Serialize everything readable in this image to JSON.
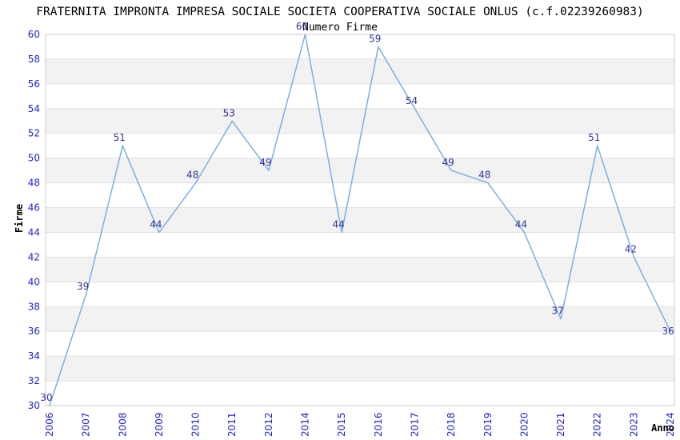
{
  "chart_data": {
    "type": "line",
    "title": "FRATERNITA IMPRONTA IMPRESA SOCIALE SOCIETA COOPERATIVA SOCIALE ONLUS (c.f.02239260983)",
    "subtitle": "Numero Firme",
    "xlabel": "Anno",
    "ylabel": "Firme",
    "categories": [
      "2006",
      "2007",
      "2008",
      "2009",
      "2010",
      "2011",
      "2012",
      "2014",
      "2015",
      "2016",
      "2017",
      "2018",
      "2019",
      "2020",
      "2021",
      "2022",
      "2023",
      "2024"
    ],
    "values": [
      30,
      39,
      51,
      44,
      48,
      53,
      49,
      60,
      44,
      59,
      54,
      49,
      48,
      44,
      37,
      51,
      42,
      36
    ],
    "ylim": [
      30,
      60
    ],
    "ytick_step": 2,
    "grid": true,
    "legend": "none",
    "data_labels": true,
    "colors": {
      "line": "#7aafe5",
      "data_label": "#333399",
      "tick_label": "#2222cc",
      "band_fill": "#f2f2f2",
      "band_alt_fill": "#ffffff",
      "grid_line": "#e1e1e1",
      "plot_border": "#cccccc",
      "title_color": "#000000",
      "background": "#ffffff"
    }
  }
}
